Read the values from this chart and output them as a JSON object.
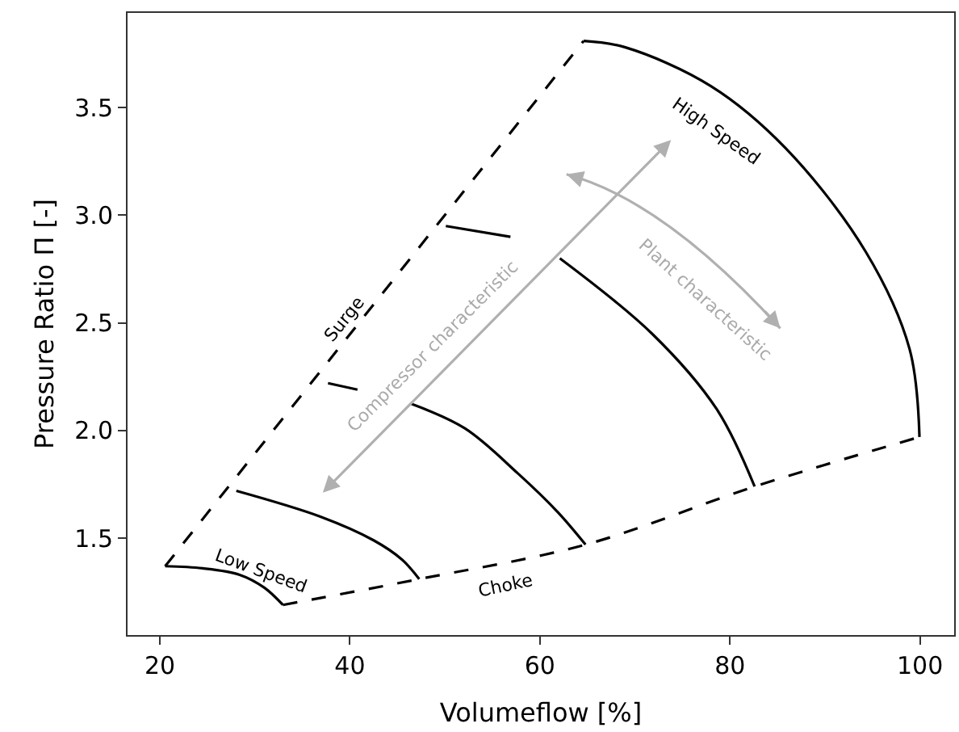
{
  "chart_data": {
    "type": "line",
    "xlabel": "Volumeflow [%]",
    "ylabel": "Pressure Ratio Π [-]",
    "xlim": [
      16.6,
      103.6
    ],
    "ylim": [
      1.05,
      3.94
    ],
    "xticks": [
      20,
      40,
      60,
      80,
      100
    ],
    "yticks": [
      1.5,
      {
        "value": 2,
        "label": "2.0"
      },
      2.5,
      {
        "value": 3,
        "label": "3.0"
      },
      3.5
    ],
    "marker": "none",
    "series": [
      {
        "color": "#000000",
        "line_style": "dashed",
        "x": [
          20.56,
          64.6
        ],
        "values": [
          1.37,
          3.81
        ]
      },
      {
        "color": "#000000",
        "line_style": "dashed",
        "x": [
          32.95,
          47.3,
          64.8,
          82.6,
          99.95
        ],
        "values": [
          1.19,
          1.31,
          1.47,
          1.74,
          1.97
        ]
      },
      {
        "color": "#000000",
        "line_style": "solid",
        "x": [
          20.56,
          24.5,
          28.4,
          31.0,
          32.95
        ],
        "values": [
          1.37,
          1.36,
          1.33,
          1.27,
          1.19
        ]
      },
      {
        "color": "#000000",
        "line_style": "solid",
        "x": [
          28.05,
          36.9,
          42.5,
          45.5,
          47.3
        ],
        "values": [
          1.72,
          1.6,
          1.49,
          1.4,
          1.31
        ]
      },
      {
        "color": "#000000",
        "line_style": "solid",
        "x": [
          37.7,
          40.8,
          43.6,
          46.4,
          52.1,
          57.7,
          61.9,
          64.8
        ],
        "values": [
          2.22,
          2.19,
          null,
          2.125,
          2.01,
          1.8,
          1.62,
          1.47
        ]
      },
      {
        "color": "#000000",
        "line_style": "solid",
        "x": [
          50.1,
          56.9,
          59.5,
          62.1,
          71.8,
          78.6,
          82.6
        ],
        "values": [
          2.95,
          2.9,
          null,
          2.8,
          2.45,
          2.1,
          1.74
        ]
      },
      {
        "color": "#000000",
        "line_style": "solid",
        "x": [
          64.6,
          69.0,
          78.0,
          85.9,
          94.3,
          98.9,
          99.95
        ],
        "values": [
          3.81,
          3.78,
          3.6,
          3.31,
          2.83,
          2.38,
          1.97
        ]
      }
    ],
    "annotations": [
      "Surge",
      "High Speed",
      "Low Speed",
      "Choke",
      "Compressor characteristic",
      "Plant characteristic"
    ]
  }
}
